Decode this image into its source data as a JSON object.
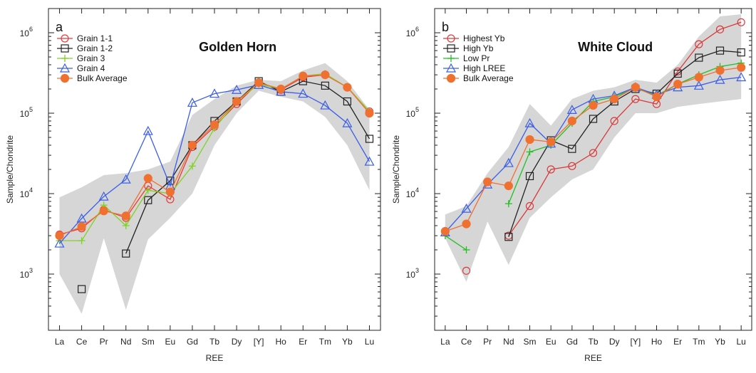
{
  "chart_data": [
    {
      "type": "line",
      "panel_letter": "a",
      "title": "Golden Horn",
      "xlabel": "REE",
      "ylabel": "Sample/Chondrite",
      "log_y": true,
      "ylim": [
        200,
        2000000
      ],
      "y_ticks": [
        {
          "value": 1000,
          "exp": "3"
        },
        {
          "value": 10000,
          "exp": "4"
        },
        {
          "value": 100000,
          "exp": "5"
        },
        {
          "value": 1000000,
          "exp": "6"
        }
      ],
      "categories": [
        "La",
        "Ce",
        "Pr",
        "Nd",
        "Sm",
        "Eu",
        "Gd",
        "Tb",
        "Dy",
        "[Y]",
        "Ho",
        "Er",
        "Tm",
        "Yb",
        "Lu"
      ],
      "legend_position": "top-left",
      "range_band": {
        "upper": [
          9000,
          12000,
          17000,
          18000,
          20000,
          25000,
          95000,
          150000,
          220000,
          260000,
          250000,
          340000,
          420000,
          250000,
          110000
        ],
        "lower": [
          1000,
          320,
          2800,
          360,
          2700,
          5000,
          10000,
          40000,
          100000,
          190000,
          160000,
          140000,
          90000,
          40000,
          11000
        ]
      },
      "series": [
        {
          "name": "Grain 1-1",
          "color": "#e83a3a",
          "marker": "circle",
          "filled": false,
          "values": [
            3100,
            3700,
            6300,
            5000,
            12500,
            8500,
            38000,
            68000,
            130000,
            240000,
            195000,
            280000,
            300000,
            210000,
            105000
          ]
        },
        {
          "name": "Grain 1-2",
          "color": "#222222",
          "marker": "square",
          "filled": false,
          "values": [
            null,
            650,
            null,
            1800,
            8300,
            14500,
            40000,
            80000,
            140000,
            250000,
            185000,
            250000,
            220000,
            140000,
            48000
          ]
        },
        {
          "name": "Grain 3",
          "color": "#7ed321",
          "marker": "plus",
          "filled": false,
          "values": [
            2600,
            2600,
            7200,
            4000,
            11000,
            10000,
            22000,
            65000,
            140000,
            230000,
            200000,
            290000,
            310000,
            210000,
            105000
          ]
        },
        {
          "name": "Grain 4",
          "color": "#3a5ee8",
          "marker": "triangle",
          "filled": false,
          "values": [
            2400,
            4900,
            9200,
            15000,
            60000,
            12500,
            135000,
            175000,
            195000,
            225000,
            185000,
            175000,
            125000,
            75000,
            25000
          ]
        },
        {
          "name": "Bulk Average",
          "color": "#f07030",
          "marker": "circle",
          "filled": true,
          "values": [
            3000,
            3900,
            6100,
            5300,
            15500,
            10500,
            40000,
            72000,
            140000,
            240000,
            200000,
            290000,
            300000,
            210000,
            100000
          ]
        }
      ]
    },
    {
      "type": "line",
      "panel_letter": "b",
      "title": "White Cloud",
      "xlabel": "REE",
      "ylabel": "Sample/Chondrite",
      "log_y": true,
      "ylim": [
        200,
        2000000
      ],
      "y_ticks": [
        {
          "value": 1000,
          "exp": "3"
        },
        {
          "value": 10000,
          "exp": "4"
        },
        {
          "value": 100000,
          "exp": "5"
        },
        {
          "value": 1000000,
          "exp": "6"
        }
      ],
      "categories": [
        "La",
        "Ce",
        "Pr",
        "Nd",
        "Sm",
        "Eu",
        "Gd",
        "Tb",
        "Dy",
        "[Y]",
        "Ho",
        "Er",
        "Tm",
        "Yb",
        "Lu"
      ],
      "legend_position": "top-left",
      "range_band": {
        "upper": [
          5500,
          7000,
          18000,
          38000,
          130000,
          70000,
          150000,
          190000,
          210000,
          260000,
          240000,
          400000,
          900000,
          1600000,
          1700000
        ],
        "lower": [
          2800,
          800,
          4500,
          1300,
          5000,
          9000,
          15000,
          20000,
          50000,
          100000,
          100000,
          120000,
          130000,
          140000,
          150000
        ]
      },
      "series": [
        {
          "name": "Highest Yb",
          "color": "#d93a3a",
          "marker": "circle",
          "filled": false,
          "values": [
            null,
            1100,
            null,
            3000,
            7000,
            20000,
            22000,
            32000,
            80000,
            150000,
            130000,
            330000,
            720000,
            1100000,
            1350000
          ]
        },
        {
          "name": "High Yb",
          "color": "#222222",
          "marker": "square",
          "filled": false,
          "values": [
            null,
            null,
            null,
            2900,
            16500,
            46000,
            36000,
            85000,
            140000,
            200000,
            175000,
            310000,
            490000,
            600000,
            570000
          ]
        },
        {
          "name": "Low Pr",
          "color": "#22c022",
          "marker": "plus",
          "filled": false,
          "values": [
            3000,
            2000,
            null,
            7500,
            33000,
            40000,
            75000,
            140000,
            160000,
            205000,
            165000,
            230000,
            300000,
            380000,
            420000
          ]
        },
        {
          "name": "High LREE",
          "color": "#3a5ee8",
          "marker": "triangle",
          "filled": false,
          "values": [
            3300,
            6500,
            13000,
            24000,
            75000,
            42000,
            110000,
            150000,
            165000,
            210000,
            170000,
            210000,
            220000,
            260000,
            280000
          ]
        },
        {
          "name": "Bulk Average",
          "color": "#f07030",
          "marker": "circle",
          "filled": true,
          "values": [
            3400,
            4200,
            14000,
            12500,
            47000,
            44000,
            80000,
            125000,
            150000,
            210000,
            160000,
            230000,
            280000,
            340000,
            370000
          ]
        }
      ]
    }
  ]
}
